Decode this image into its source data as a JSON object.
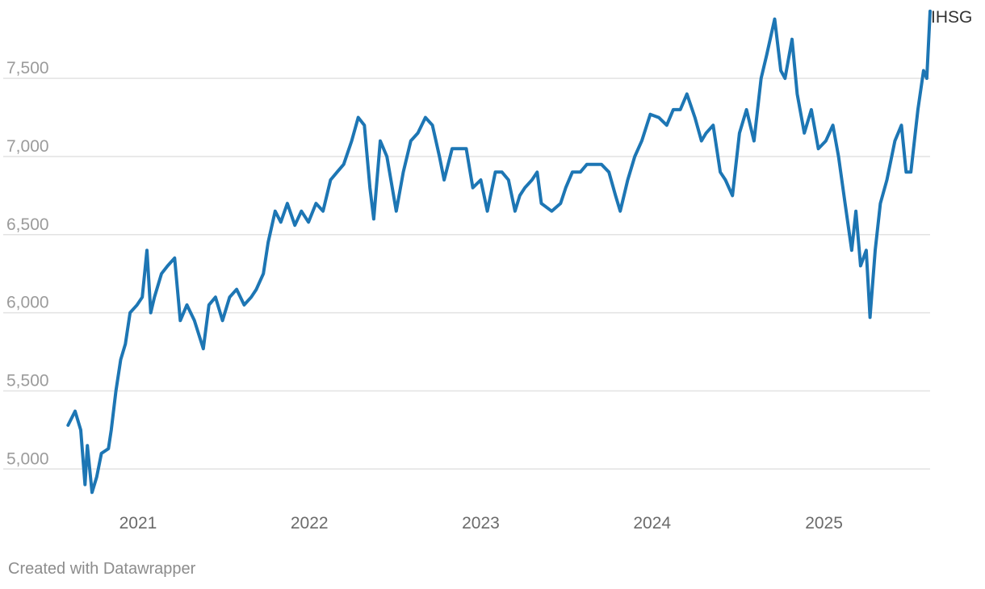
{
  "chart_data": {
    "type": "line",
    "title": "",
    "xlabel": "",
    "ylabel": "",
    "x_range": [
      "2020-08-01",
      "2025-08-15"
    ],
    "ylim": [
      4800,
      7950
    ],
    "y_ticks": [
      {
        "value": 5000,
        "label": "5,000"
      },
      {
        "value": 5500,
        "label": "5,500"
      },
      {
        "value": 6000,
        "label": "6,000"
      },
      {
        "value": 6500,
        "label": "6,500"
      },
      {
        "value": 7000,
        "label": "7,000"
      },
      {
        "value": 7500,
        "label": "7,500"
      }
    ],
    "x_ticks": [
      {
        "date": "2021-01-01",
        "label": "2021"
      },
      {
        "date": "2022-01-01",
        "label": "2022"
      },
      {
        "date": "2023-01-01",
        "label": "2023"
      },
      {
        "date": "2024-01-01",
        "label": "2024"
      },
      {
        "date": "2025-01-01",
        "label": "2025"
      }
    ],
    "grid": true,
    "series": [
      {
        "name": "IHSG",
        "color": "#1d76b4",
        "points": [
          [
            "2020-08-05",
            5280
          ],
          [
            "2020-08-20",
            5370
          ],
          [
            "2020-09-01",
            5250
          ],
          [
            "2020-09-10",
            4900
          ],
          [
            "2020-09-15",
            5150
          ],
          [
            "2020-09-25",
            4850
          ],
          [
            "2020-10-05",
            4950
          ],
          [
            "2020-10-15",
            5100
          ],
          [
            "2020-10-30",
            5130
          ],
          [
            "2020-11-05",
            5250
          ],
          [
            "2020-11-15",
            5500
          ],
          [
            "2020-11-25",
            5700
          ],
          [
            "2020-12-05",
            5800
          ],
          [
            "2020-12-15",
            6000
          ],
          [
            "2020-12-30",
            6050
          ],
          [
            "2021-01-10",
            6100
          ],
          [
            "2021-01-20",
            6400
          ],
          [
            "2021-01-28",
            6000
          ],
          [
            "2021-02-05",
            6100
          ],
          [
            "2021-02-20",
            6250
          ],
          [
            "2021-03-05",
            6300
          ],
          [
            "2021-03-20",
            6350
          ],
          [
            "2021-04-01",
            5950
          ],
          [
            "2021-04-15",
            6050
          ],
          [
            "2021-05-01",
            5950
          ],
          [
            "2021-05-20",
            5770
          ],
          [
            "2021-06-01",
            6050
          ],
          [
            "2021-06-15",
            6100
          ],
          [
            "2021-06-30",
            5950
          ],
          [
            "2021-07-15",
            6100
          ],
          [
            "2021-07-30",
            6150
          ],
          [
            "2021-08-15",
            6050
          ],
          [
            "2021-08-30",
            6100
          ],
          [
            "2021-09-10",
            6150
          ],
          [
            "2021-09-25",
            6250
          ],
          [
            "2021-10-05",
            6450
          ],
          [
            "2021-10-20",
            6650
          ],
          [
            "2021-11-01",
            6580
          ],
          [
            "2021-11-15",
            6700
          ],
          [
            "2021-12-01",
            6560
          ],
          [
            "2021-12-15",
            6650
          ],
          [
            "2021-12-30",
            6580
          ],
          [
            "2022-01-15",
            6700
          ],
          [
            "2022-01-30",
            6650
          ],
          [
            "2022-02-15",
            6850
          ],
          [
            "2022-03-01",
            6900
          ],
          [
            "2022-03-15",
            6950
          ],
          [
            "2022-04-01",
            7100
          ],
          [
            "2022-04-15",
            7250
          ],
          [
            "2022-04-28",
            7200
          ],
          [
            "2022-05-10",
            6800
          ],
          [
            "2022-05-18",
            6600
          ],
          [
            "2022-06-01",
            7100
          ],
          [
            "2022-06-15",
            7000
          ],
          [
            "2022-07-05",
            6650
          ],
          [
            "2022-07-20",
            6900
          ],
          [
            "2022-08-05",
            7100
          ],
          [
            "2022-08-20",
            7150
          ],
          [
            "2022-09-05",
            7250
          ],
          [
            "2022-09-20",
            7200
          ],
          [
            "2022-10-05",
            7000
          ],
          [
            "2022-10-15",
            6850
          ],
          [
            "2022-11-01",
            7050
          ],
          [
            "2022-11-15",
            7050
          ],
          [
            "2022-12-01",
            7050
          ],
          [
            "2022-12-15",
            6800
          ],
          [
            "2023-01-01",
            6850
          ],
          [
            "2023-01-15",
            6650
          ],
          [
            "2023-02-01",
            6900
          ],
          [
            "2023-02-15",
            6900
          ],
          [
            "2023-03-01",
            6850
          ],
          [
            "2023-03-15",
            6650
          ],
          [
            "2023-03-25",
            6750
          ],
          [
            "2023-04-05",
            6800
          ],
          [
            "2023-04-20",
            6850
          ],
          [
            "2023-05-01",
            6900
          ],
          [
            "2023-05-10",
            6700
          ],
          [
            "2023-06-01",
            6650
          ],
          [
            "2023-06-20",
            6700
          ],
          [
            "2023-07-01",
            6800
          ],
          [
            "2023-07-15",
            6900
          ],
          [
            "2023-08-01",
            6900
          ],
          [
            "2023-08-15",
            6950
          ],
          [
            "2023-09-01",
            6950
          ],
          [
            "2023-09-15",
            6950
          ],
          [
            "2023-10-01",
            6900
          ],
          [
            "2023-10-15",
            6750
          ],
          [
            "2023-10-25",
            6650
          ],
          [
            "2023-11-10",
            6850
          ],
          [
            "2023-11-25",
            7000
          ],
          [
            "2023-12-10",
            7100
          ],
          [
            "2023-12-28",
            7270
          ],
          [
            "2024-01-15",
            7250
          ],
          [
            "2024-02-01",
            7200
          ],
          [
            "2024-02-15",
            7300
          ],
          [
            "2024-03-01",
            7300
          ],
          [
            "2024-03-15",
            7400
          ],
          [
            "2024-04-01",
            7250
          ],
          [
            "2024-04-15",
            7100
          ],
          [
            "2024-04-25",
            7150
          ],
          [
            "2024-05-10",
            7200
          ],
          [
            "2024-05-25",
            6900
          ],
          [
            "2024-06-05",
            6850
          ],
          [
            "2024-06-20",
            6750
          ],
          [
            "2024-07-05",
            7150
          ],
          [
            "2024-07-20",
            7300
          ],
          [
            "2024-08-05",
            7100
          ],
          [
            "2024-08-20",
            7500
          ],
          [
            "2024-09-01",
            7650
          ],
          [
            "2024-09-18",
            7880
          ],
          [
            "2024-10-01",
            7550
          ],
          [
            "2024-10-10",
            7500
          ],
          [
            "2024-10-25",
            7750
          ],
          [
            "2024-11-05",
            7400
          ],
          [
            "2024-11-20",
            7150
          ],
          [
            "2024-12-05",
            7300
          ],
          [
            "2024-12-20",
            7050
          ],
          [
            "2025-01-05",
            7100
          ],
          [
            "2025-01-20",
            7200
          ],
          [
            "2025-02-01",
            7000
          ],
          [
            "2025-02-15",
            6700
          ],
          [
            "2025-03-01",
            6400
          ],
          [
            "2025-03-10",
            6650
          ],
          [
            "2025-03-20",
            6300
          ],
          [
            "2025-04-01",
            6400
          ],
          [
            "2025-04-09",
            5970
          ],
          [
            "2025-04-20",
            6400
          ],
          [
            "2025-05-01",
            6700
          ],
          [
            "2025-05-15",
            6850
          ],
          [
            "2025-06-01",
            7100
          ],
          [
            "2025-06-15",
            7200
          ],
          [
            "2025-06-25",
            6900
          ],
          [
            "2025-07-05",
            6900
          ],
          [
            "2025-07-20",
            7300
          ],
          [
            "2025-08-01",
            7550
          ],
          [
            "2025-08-08",
            7500
          ],
          [
            "2025-08-15",
            7930
          ]
        ]
      }
    ]
  },
  "footer": {
    "credit": "Created with Datawrapper"
  }
}
